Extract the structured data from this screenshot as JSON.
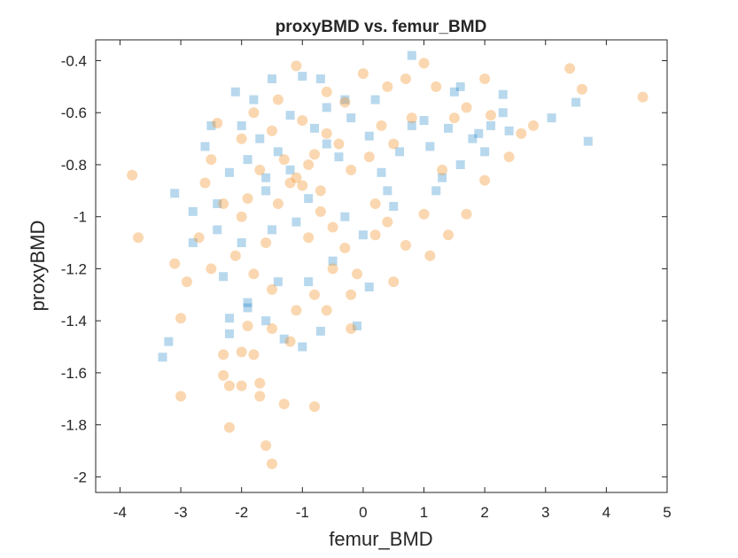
{
  "chart_data": {
    "type": "scatter",
    "title": "proxyBMD vs. femur_BMD",
    "xlabel": "femur_BMD",
    "ylabel": "proxyBMD",
    "xlim": [
      -4.4,
      5.0
    ],
    "ylim": [
      -2.06,
      -0.32
    ],
    "xticks": [
      -4,
      -3,
      -2,
      -1,
      0,
      1,
      2,
      3,
      4,
      5
    ],
    "xtick_labels": [
      "-4",
      "-3",
      "-2",
      "-1",
      "0",
      "1",
      "2",
      "3",
      "4",
      "5"
    ],
    "yticks": [
      -2,
      -1.8,
      -1.6,
      -1.4,
      -1.2,
      -1,
      -0.8,
      -0.6,
      -0.4
    ],
    "ytick_labels": [
      "-2",
      "-1.8",
      "-1.6",
      "-1.4",
      "-1.2",
      "-1",
      "-0.8",
      "-0.6",
      "-0.4"
    ],
    "grid": false,
    "series": [
      {
        "marker": "square",
        "color": "#0072BD",
        "alpha": 0.28,
        "points": [
          [
            -3.3,
            -1.54
          ],
          [
            -3.2,
            -1.48
          ],
          [
            -3.1,
            -0.91
          ],
          [
            -2.8,
            -0.98
          ],
          [
            -2.8,
            -1.1
          ],
          [
            -2.6,
            -0.73
          ],
          [
            -2.5,
            -0.65
          ],
          [
            -2.4,
            -0.95
          ],
          [
            -2.3,
            -1.23
          ],
          [
            -2.2,
            -1.39
          ],
          [
            -2.2,
            -1.45
          ],
          [
            -2.1,
            -0.52
          ],
          [
            -2.0,
            -0.65
          ],
          [
            -1.9,
            -1.33
          ],
          [
            -1.9,
            -1.35
          ],
          [
            -1.9,
            -0.78
          ],
          [
            -1.8,
            -0.55
          ],
          [
            -1.6,
            -1.4
          ],
          [
            -1.6,
            -0.85
          ],
          [
            -1.6,
            -0.9
          ],
          [
            -1.5,
            -0.47
          ],
          [
            -1.4,
            -1.25
          ],
          [
            -1.3,
            -1.47
          ],
          [
            -1.2,
            -0.61
          ],
          [
            -1.0,
            -0.46
          ],
          [
            -1.0,
            -1.5
          ],
          [
            -0.9,
            -1.25
          ],
          [
            -0.7,
            -1.44
          ],
          [
            -0.7,
            -0.47
          ],
          [
            -0.6,
            -0.58
          ],
          [
            -0.5,
            -1.17
          ],
          [
            -0.3,
            -1.0
          ],
          [
            -0.1,
            -1.42
          ],
          [
            0.0,
            -1.07
          ],
          [
            0.1,
            -1.27
          ],
          [
            0.1,
            -0.69
          ],
          [
            0.2,
            -0.55
          ],
          [
            0.4,
            -0.9
          ],
          [
            0.6,
            -0.75
          ],
          [
            0.8,
            -0.38
          ],
          [
            0.8,
            -0.65
          ],
          [
            1.0,
            -0.63
          ],
          [
            1.1,
            -0.73
          ],
          [
            1.2,
            -0.9
          ],
          [
            1.3,
            -0.85
          ],
          [
            1.4,
            -0.66
          ],
          [
            1.5,
            -0.52
          ],
          [
            1.6,
            -0.5
          ],
          [
            1.6,
            -0.8
          ],
          [
            1.8,
            -0.7
          ],
          [
            1.9,
            -0.68
          ],
          [
            2.0,
            -0.75
          ],
          [
            2.1,
            -0.65
          ],
          [
            2.3,
            -0.6
          ],
          [
            2.3,
            -0.53
          ],
          [
            2.4,
            -0.67
          ],
          [
            3.1,
            -0.62
          ],
          [
            3.5,
            -0.56
          ],
          [
            3.7,
            -0.71
          ],
          [
            -2.0,
            -1.1
          ],
          [
            -1.7,
            -0.7
          ],
          [
            -1.4,
            -0.75
          ],
          [
            -1.2,
            -0.82
          ],
          [
            -0.8,
            -0.66
          ],
          [
            -0.6,
            -0.72
          ],
          [
            -0.4,
            -0.77
          ],
          [
            -0.2,
            -0.62
          ],
          [
            0.3,
            -0.83
          ],
          [
            0.5,
            -0.96
          ],
          [
            -1.1,
            -1.02
          ],
          [
            -0.9,
            -0.93
          ],
          [
            -1.5,
            -1.05
          ],
          [
            -2.4,
            -1.05
          ],
          [
            -2.2,
            -0.83
          ],
          [
            -0.3,
            -0.55
          ]
        ]
      },
      {
        "marker": "circle",
        "color": "#F28B1E",
        "alpha": 0.35,
        "points": [
          [
            -3.8,
            -0.84
          ],
          [
            -3.7,
            -1.08
          ],
          [
            -3.0,
            -1.69
          ],
          [
            -3.0,
            -1.39
          ],
          [
            -2.9,
            -1.25
          ],
          [
            -3.1,
            -1.18
          ],
          [
            -2.7,
            -1.08
          ],
          [
            -2.5,
            -1.2
          ],
          [
            -2.3,
            -1.53
          ],
          [
            -2.3,
            -1.61
          ],
          [
            -2.2,
            -1.81
          ],
          [
            -2.2,
            -1.65
          ],
          [
            -2.0,
            -1.52
          ],
          [
            -2.0,
            -1.65
          ],
          [
            -1.9,
            -1.42
          ],
          [
            -1.8,
            -1.53
          ],
          [
            -1.7,
            -1.69
          ],
          [
            -1.7,
            -1.64
          ],
          [
            -1.6,
            -1.88
          ],
          [
            -1.5,
            -1.95
          ],
          [
            -1.5,
            -1.43
          ],
          [
            -1.3,
            -1.72
          ],
          [
            -1.2,
            -1.48
          ],
          [
            -1.1,
            -1.36
          ],
          [
            -0.8,
            -1.3
          ],
          [
            -0.8,
            -1.73
          ],
          [
            -0.6,
            -1.36
          ],
          [
            -0.5,
            -1.2
          ],
          [
            -0.2,
            -1.43
          ],
          [
            -0.2,
            -1.3
          ],
          [
            -0.1,
            -1.22
          ],
          [
            0.2,
            -1.07
          ],
          [
            0.5,
            -1.25
          ],
          [
            0.7,
            -1.11
          ],
          [
            1.0,
            -0.99
          ],
          [
            1.1,
            -1.15
          ],
          [
            1.4,
            -1.07
          ],
          [
            1.7,
            -0.99
          ],
          [
            2.0,
            -0.86
          ],
          [
            2.4,
            -0.77
          ],
          [
            2.6,
            -0.68
          ],
          [
            2.8,
            -0.65
          ],
          [
            3.4,
            -0.43
          ],
          [
            3.6,
            -0.51
          ],
          [
            4.6,
            -0.54
          ],
          [
            2.0,
            -0.47
          ],
          [
            2.1,
            -0.61
          ],
          [
            1.7,
            -0.58
          ],
          [
            1.2,
            -0.5
          ],
          [
            1.0,
            -0.41
          ],
          [
            0.7,
            -0.47
          ],
          [
            0.4,
            -0.5
          ],
          [
            0.0,
            -0.45
          ],
          [
            -0.3,
            -0.56
          ],
          [
            -0.6,
            -0.52
          ],
          [
            -1.1,
            -0.42
          ],
          [
            -1.4,
            -0.55
          ],
          [
            -1.8,
            -0.6
          ],
          [
            -2.0,
            -0.7
          ],
          [
            -2.5,
            -0.78
          ],
          [
            -2.6,
            -0.87
          ],
          [
            -2.3,
            -0.95
          ],
          [
            -2.0,
            -1.0
          ],
          [
            -1.6,
            -1.1
          ],
          [
            -1.4,
            -0.95
          ],
          [
            -1.2,
            -0.87
          ],
          [
            -1.1,
            -0.85
          ],
          [
            -1.0,
            -0.88
          ],
          [
            -0.9,
            -0.8
          ],
          [
            -0.8,
            -0.76
          ],
          [
            -0.6,
            -0.68
          ],
          [
            -0.4,
            -0.72
          ],
          [
            -0.2,
            -0.82
          ],
          [
            0.1,
            -0.77
          ],
          [
            0.3,
            -0.65
          ],
          [
            0.5,
            -0.72
          ],
          [
            0.8,
            -0.62
          ],
          [
            1.3,
            -0.82
          ],
          [
            1.5,
            -0.62
          ],
          [
            -1.5,
            -0.67
          ],
          [
            -1.7,
            -0.82
          ],
          [
            -1.9,
            -0.93
          ],
          [
            -2.1,
            -1.15
          ],
          [
            -1.8,
            -1.22
          ],
          [
            -1.5,
            -1.28
          ],
          [
            -0.9,
            -1.08
          ],
          [
            -0.7,
            -0.98
          ],
          [
            -0.5,
            -1.04
          ],
          [
            -0.3,
            -1.12
          ],
          [
            0.2,
            -0.95
          ],
          [
            0.4,
            -1.02
          ],
          [
            -2.4,
            -0.64
          ],
          [
            -1.0,
            -0.63
          ],
          [
            -0.7,
            -0.9
          ],
          [
            -1.3,
            -0.78
          ]
        ]
      }
    ]
  }
}
